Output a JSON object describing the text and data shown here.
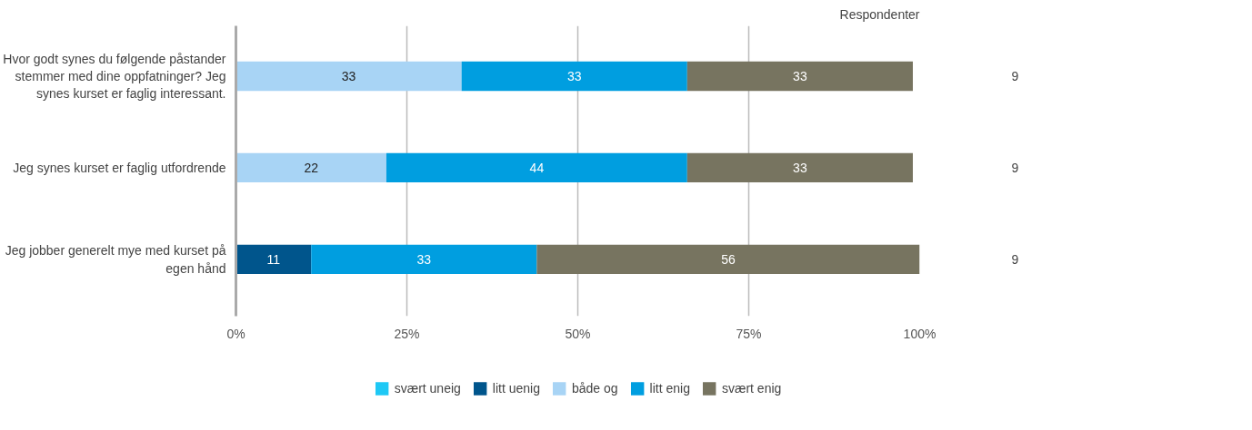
{
  "chart_data": {
    "type": "bar",
    "orientation": "horizontal",
    "stacked": true,
    "data_labels": true,
    "categories": [
      "Hvor godt synes du følgende påstander stemmer med dine oppfatninger? Jeg synes kurset er faglig interessant.",
      "Jeg synes kurset er faglig utfordrende",
      "Jeg jobber generelt mye med kurset på egen hånd"
    ],
    "series": [
      {
        "name": "svært uneig",
        "color": "#1ec8f5",
        "values": [
          null,
          null,
          null
        ]
      },
      {
        "name": "litt uenig",
        "color": "#00558c",
        "values": [
          null,
          null,
          11
        ]
      },
      {
        "name": "både og",
        "color": "#a8d4f5",
        "values": [
          33,
          22,
          null
        ]
      },
      {
        "name": "litt enig",
        "color": "#009ee0",
        "values": [
          33,
          44,
          33
        ]
      },
      {
        "name": "svært enig",
        "color": "#777460",
        "values": [
          33,
          33,
          56
        ]
      }
    ],
    "xlim": [
      0,
      100
    ],
    "xticks": [
      {
        "value": 0,
        "label": "0%"
      },
      {
        "value": 25,
        "label": "25%"
      },
      {
        "value": 50,
        "label": "50%"
      },
      {
        "value": 75,
        "label": "75%"
      },
      {
        "value": 100,
        "label": "100%"
      }
    ],
    "grid": "x",
    "legend": "bottom",
    "annotations": [
      "Respondenter",
      "9",
      "9",
      "9"
    ]
  }
}
